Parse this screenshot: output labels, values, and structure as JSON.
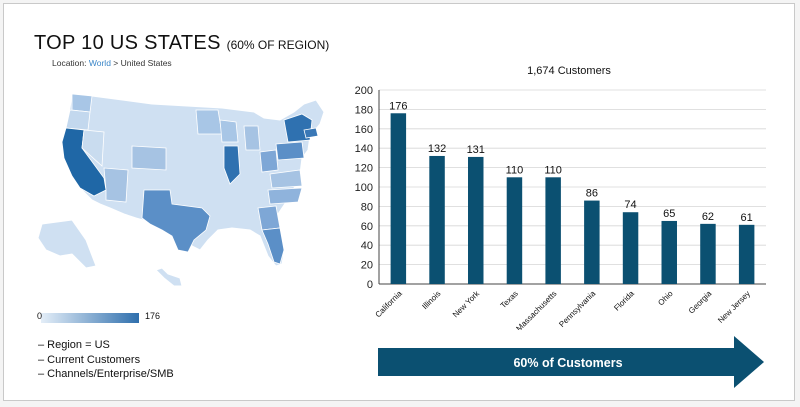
{
  "header": {
    "title": "TOP 10 US STATES",
    "subtitle": "(60% OF REGION)",
    "location_label": "Location:",
    "location_link": "World",
    "location_separator": ">",
    "location_current": "United States"
  },
  "map": {
    "scale_min_label": "0",
    "scale_max_label": "176",
    "color_low": "#e4eef8",
    "color_high": "#2f6fad"
  },
  "filters": [
    "– Region = US",
    "– Current Customers",
    "– Channels/Enterprise/SMB"
  ],
  "chart_data": {
    "type": "bar",
    "title": "1,674 Customers",
    "categories": [
      "California",
      "Illinois",
      "New York",
      "Texas",
      "Massachusetts",
      "Pennsylvania",
      "Florida",
      "Ohio",
      "Georgia",
      "New Jersey"
    ],
    "values": [
      176,
      132,
      131,
      110,
      110,
      86,
      74,
      65,
      62,
      61
    ],
    "ylim": [
      0,
      200
    ],
    "yticks": [
      0,
      20,
      40,
      60,
      80,
      100,
      120,
      140,
      160,
      180,
      200
    ],
    "grid": true,
    "bar_color": "#0b5071"
  },
  "banner": {
    "label": "60% of Customers",
    "color": "#0b5071"
  }
}
